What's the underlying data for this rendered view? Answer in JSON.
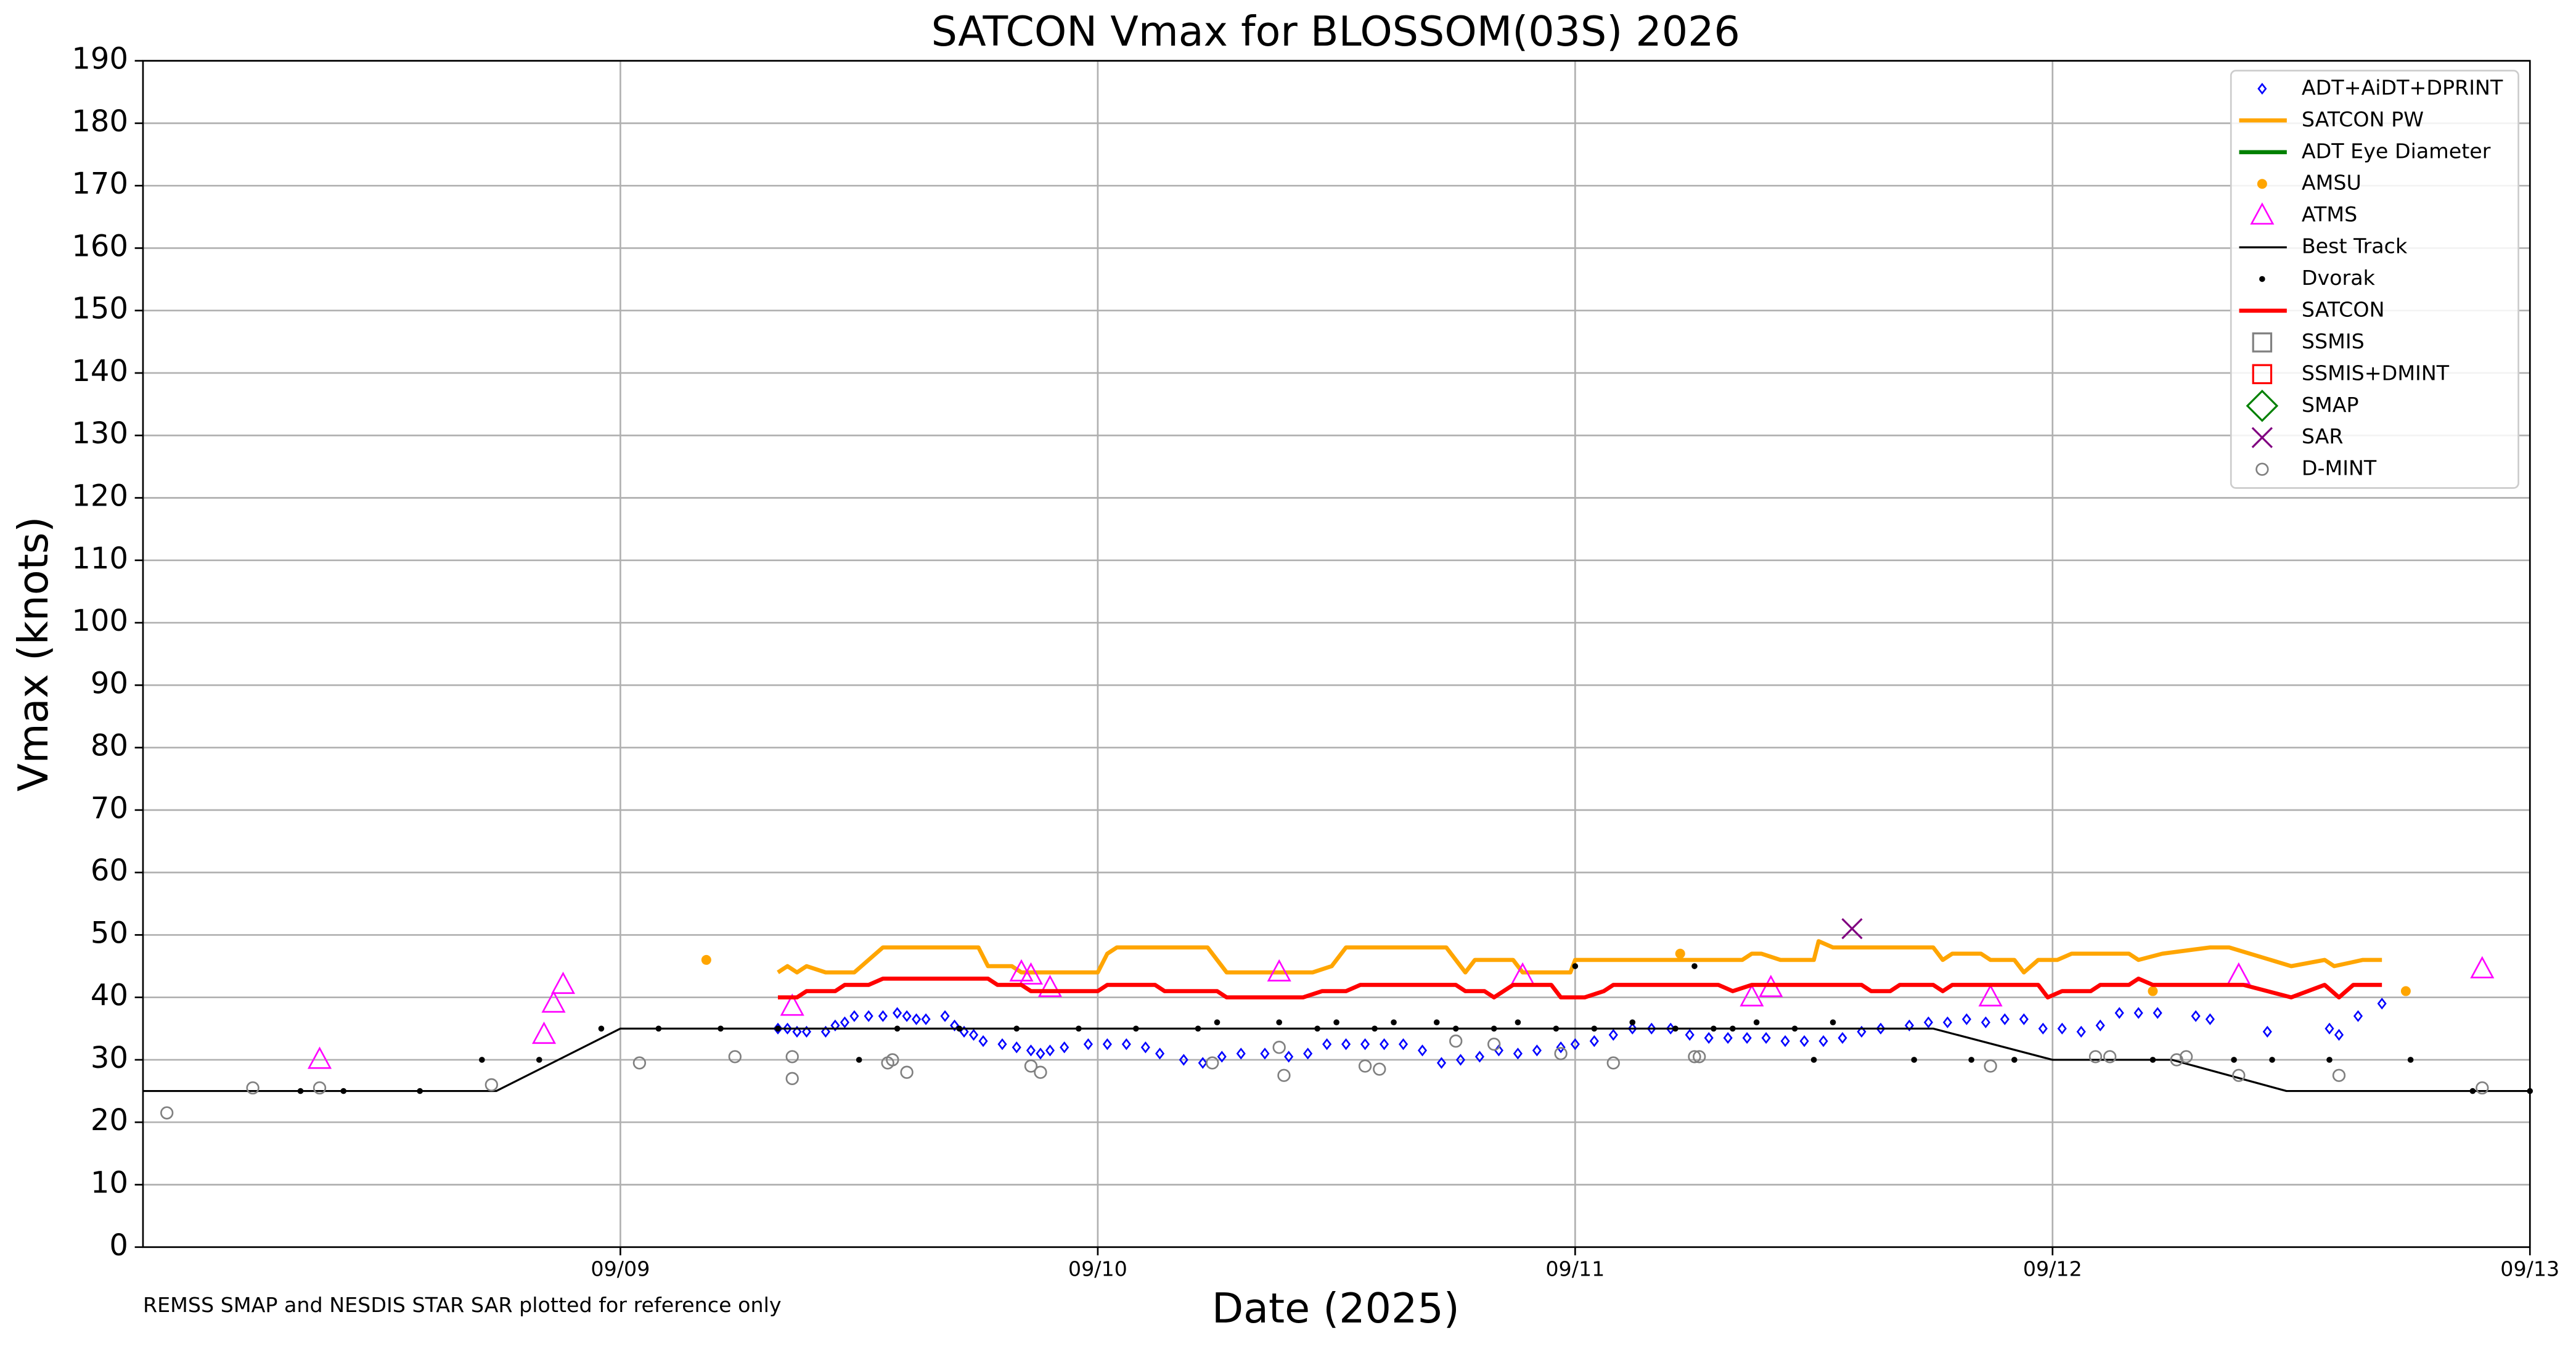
{
  "chart_data": {
    "type": "scatter",
    "title": "SATCON Vmax for BLOSSOM(03S) 2026",
    "xlabel": "Date (2025)",
    "ylabel": "Vmax (knots)",
    "footnote": "REMSS SMAP and NESDIS STAR SAR plotted for reference only",
    "xlim": [
      8,
      13
    ],
    "xticks": [
      {
        "value": 9,
        "label": "09/09"
      },
      {
        "value": 10,
        "label": "09/10"
      },
      {
        "value": 11,
        "label": "09/11"
      },
      {
        "value": 12,
        "label": "09/12"
      },
      {
        "value": 13,
        "label": "09/13"
      }
    ],
    "ylim": [
      0,
      190
    ],
    "yticks": [
      0,
      10,
      20,
      30,
      40,
      50,
      60,
      70,
      80,
      90,
      100,
      110,
      120,
      130,
      140,
      150,
      160,
      170,
      180,
      190
    ],
    "grid": true,
    "legend": "upper right",
    "series": [
      {
        "name": "ADT+AiDT+DPRINT",
        "color": "#0000ff",
        "marker": "diamond",
        "x": [
          9.33,
          9.35,
          9.37,
          9.39,
          9.43,
          9.45,
          9.47,
          9.49,
          9.52,
          9.55,
          9.58,
          9.6,
          9.62,
          9.64,
          9.68,
          9.7,
          9.72,
          9.74,
          9.76,
          9.8,
          9.83,
          9.86,
          9.88,
          9.9,
          9.93,
          9.98,
          10.02,
          10.06,
          10.1,
          10.13,
          10.18,
          10.22,
          10.26,
          10.3,
          10.35,
          10.4,
          10.44,
          10.48,
          10.52,
          10.56,
          10.6,
          10.64,
          10.68,
          10.72,
          10.76,
          10.8,
          10.84,
          10.88,
          10.92,
          10.97,
          11.0,
          11.04,
          11.08,
          11.12,
          11.16,
          11.2,
          11.24,
          11.28,
          11.32,
          11.36,
          11.4,
          11.44,
          11.48,
          11.52,
          11.56,
          11.6,
          11.64,
          11.7,
          11.74,
          11.78,
          11.82,
          11.86,
          11.9,
          11.94,
          11.98,
          12.02,
          12.06,
          12.1,
          12.14,
          12.18,
          12.22,
          12.3,
          12.33,
          12.45,
          12.58,
          12.6,
          12.64,
          12.69
        ],
        "values": [
          35,
          35,
          34.5,
          34.5,
          34.5,
          35.5,
          36,
          37,
          37,
          37,
          37.5,
          37,
          36.5,
          36.5,
          37,
          35.5,
          34.5,
          34,
          33,
          32.5,
          32,
          31.5,
          31,
          31.5,
          32,
          32.5,
          32.5,
          32.5,
          32,
          31,
          30,
          29.5,
          30.5,
          31,
          31,
          30.5,
          31,
          32.5,
          32.5,
          32.5,
          32.5,
          32.5,
          31.5,
          29.5,
          30,
          30.5,
          31.5,
          31,
          31.5,
          32,
          32.5,
          33,
          34,
          35,
          35,
          35,
          34,
          33.5,
          33.5,
          33.5,
          33.5,
          33,
          33,
          33,
          33.5,
          34.5,
          35,
          35.5,
          36,
          36,
          36.5,
          36,
          36.5,
          36.5,
          35,
          35,
          34.5,
          35.5,
          37.5,
          37.5,
          37.5,
          37,
          36.5,
          34.5,
          35,
          34,
          37,
          39
        ]
      },
      {
        "name": "SATCON PW",
        "color": "#ffa500",
        "marker": "line",
        "x": [
          9.33,
          9.35,
          9.37,
          9.39,
          9.43,
          9.49,
          9.52,
          9.55,
          9.75,
          9.77,
          9.82,
          9.84,
          10.0,
          10.02,
          10.04,
          10.23,
          10.25,
          10.27,
          10.45,
          10.49,
          10.52,
          10.73,
          10.75,
          10.77,
          10.79,
          10.87,
          10.89,
          10.99,
          11.0,
          11.35,
          11.37,
          11.39,
          11.43,
          11.5,
          11.51,
          11.54,
          11.75,
          11.77,
          11.79,
          11.85,
          11.87,
          11.92,
          11.94,
          11.97,
          12.01,
          12.04,
          12.16,
          12.18,
          12.23,
          12.33,
          12.37,
          12.5,
          12.57,
          12.59,
          12.65,
          12.69
        ],
        "values": [
          44,
          45,
          44,
          45,
          44,
          44,
          46,
          48,
          48,
          45,
          45,
          44,
          44,
          47,
          48,
          48,
          46,
          44,
          44,
          45,
          48,
          48,
          46,
          44,
          46,
          46,
          44,
          44,
          46,
          46,
          47,
          47,
          46,
          46,
          49,
          48,
          48,
          46,
          47,
          47,
          46,
          46,
          44,
          46,
          46,
          47,
          47,
          46,
          47,
          48,
          48,
          45,
          46,
          45,
          46,
          46
        ]
      },
      {
        "name": "ADT Eye Diameter",
        "color": "#008000",
        "marker": "line",
        "x": [],
        "values": []
      },
      {
        "name": "AMSU",
        "color": "#ffa500",
        "marker": "dot",
        "x": [
          9.18,
          11.22,
          12.21,
          12.74
        ],
        "values": [
          46,
          47,
          41,
          41
        ]
      },
      {
        "name": "ATMS",
        "color": "#ff00ff",
        "marker": "triangle",
        "x": [
          8.37,
          8.84,
          8.86,
          8.88,
          9.36,
          9.84,
          9.86,
          9.9,
          10.38,
          10.89,
          11.37,
          11.41,
          11.87,
          12.39,
          12.9
        ],
        "values": [
          30,
          34,
          39,
          42,
          38.5,
          44,
          43.5,
          41.5,
          44,
          43.5,
          40,
          41.5,
          40,
          43.5,
          44.5
        ]
      },
      {
        "name": "Best Track",
        "color": "#000000",
        "marker": "thinline",
        "x": [
          8,
          8.74,
          9,
          11.75,
          12,
          12.25,
          12.49,
          13
        ],
        "values": [
          25,
          25,
          35,
          35,
          30,
          30,
          25,
          25
        ]
      },
      {
        "name": "Dvorak",
        "color": "#000000",
        "marker": "smalldot",
        "x": [
          8.33,
          8.42,
          8.58,
          8.71,
          8.83,
          8.96,
          9.08,
          9.21,
          9.33,
          9.5,
          9.58,
          9.71,
          9.83,
          9.96,
          10.08,
          10.21,
          10.25,
          10.38,
          10.46,
          10.5,
          10.58,
          10.62,
          10.71,
          10.75,
          10.83,
          10.88,
          10.96,
          11.0,
          11.04,
          11.12,
          11.21,
          11.25,
          11.29,
          11.33,
          11.38,
          11.46,
          11.5,
          11.54,
          11.71,
          11.83,
          11.92,
          12.21,
          12.38,
          12.46,
          12.58,
          12.75,
          12.88,
          13.0
        ],
        "values": [
          25,
          25,
          25,
          30,
          30,
          35,
          35,
          35,
          35,
          30,
          35,
          35,
          35,
          35,
          35,
          35,
          36,
          36,
          35,
          36,
          35,
          36,
          36,
          35,
          35,
          36,
          35,
          45,
          35,
          36,
          35,
          45,
          35,
          35,
          36,
          35,
          30,
          36,
          30,
          30,
          30,
          30,
          30,
          30,
          30,
          30,
          25,
          25
        ]
      },
      {
        "name": "SATCON",
        "color": "#ff0000",
        "marker": "thickline",
        "x": [
          9.33,
          9.37,
          9.39,
          9.45,
          9.47,
          9.52,
          9.55,
          9.77,
          9.79,
          9.84,
          9.86,
          10.0,
          10.02,
          10.12,
          10.14,
          10.25,
          10.27,
          10.43,
          10.47,
          10.52,
          10.55,
          10.75,
          10.77,
          10.81,
          10.83,
          10.87,
          10.95,
          10.97,
          11.02,
          11.06,
          11.08,
          11.3,
          11.33,
          11.37,
          11.6,
          11.62,
          11.66,
          11.68,
          11.75,
          11.77,
          11.79,
          11.97,
          11.99,
          12.02,
          12.08,
          12.1,
          12.16,
          12.18,
          12.21,
          12.4,
          12.45,
          12.5,
          12.57,
          12.6,
          12.63,
          12.69
        ],
        "values": [
          40,
          40,
          41,
          41,
          42,
          42,
          43,
          43,
          42,
          42,
          41,
          41,
          42,
          42,
          41,
          41,
          40,
          40,
          41,
          41,
          42,
          42,
          41,
          41,
          40,
          42,
          42,
          40,
          40,
          41,
          42,
          42,
          41,
          42,
          42,
          41,
          41,
          42,
          42,
          41,
          42,
          42,
          40,
          41,
          41,
          42,
          42,
          43,
          42,
          42,
          41,
          40,
          42,
          40,
          42,
          42
        ]
      },
      {
        "name": "SSMIS",
        "color": "#808080",
        "marker": "square",
        "x": [],
        "values": []
      },
      {
        "name": "SSMIS+DMINT",
        "color": "#ff0000",
        "marker": "square",
        "x": [],
        "values": []
      },
      {
        "name": "SMAP",
        "color": "#008000",
        "marker": "bigdiamond",
        "x": [],
        "values": []
      },
      {
        "name": "SAR",
        "color": "#800080",
        "marker": "x",
        "x": [
          11.58
        ],
        "values": [
          51
        ]
      },
      {
        "name": "D-MINT",
        "color": "#808080",
        "marker": "circle",
        "x": [
          8.05,
          8.23,
          8.37,
          8.73,
          9.04,
          9.24,
          9.36,
          9.36,
          9.56,
          9.57,
          9.6,
          9.86,
          9.88,
          10.24,
          10.38,
          10.39,
          10.56,
          10.59,
          10.75,
          10.83,
          10.97,
          11.08,
          11.25,
          11.26,
          11.87,
          12.09,
          12.12,
          12.26,
          12.28,
          12.39,
          12.6,
          12.9
        ],
        "values": [
          21.5,
          25.5,
          25.5,
          26,
          29.5,
          30.5,
          27,
          30.5,
          29.5,
          30,
          28,
          29,
          28,
          29.5,
          32,
          27.5,
          29,
          28.5,
          33,
          32.5,
          31,
          29.5,
          30.5,
          30.5,
          29,
          30.5,
          30.5,
          30,
          30.5,
          27.5,
          27.5,
          25.5
        ]
      }
    ]
  }
}
